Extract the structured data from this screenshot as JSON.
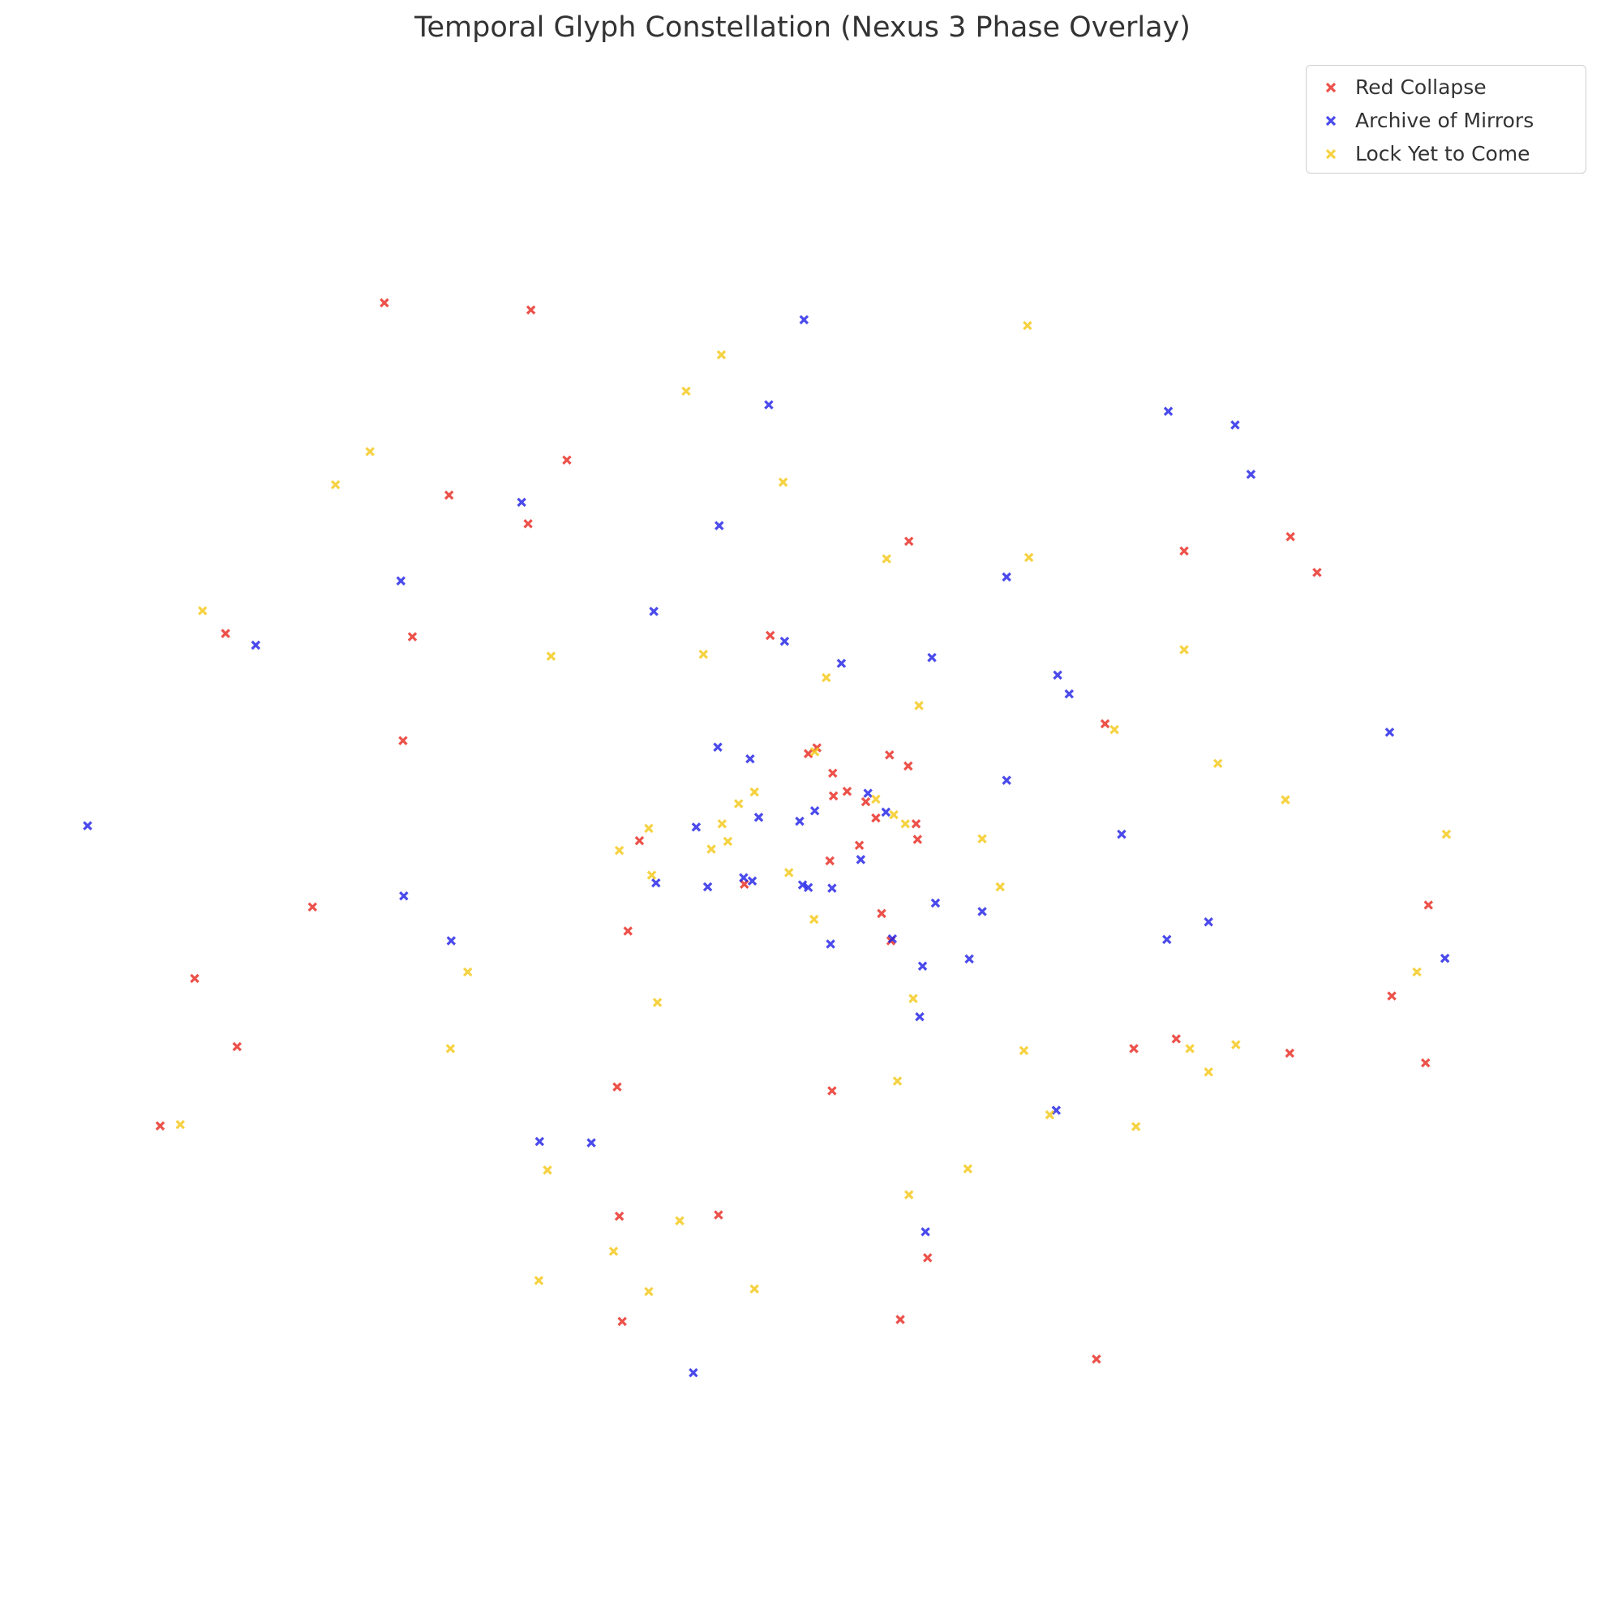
{
  "chart_data": {
    "type": "scatter",
    "title": "Temporal Glyph Constellation (Nexus 3 Phase Overlay)",
    "xlabel": "",
    "ylabel": "",
    "xlim": [
      -10,
      10
    ],
    "ylim": [
      -10,
      10
    ],
    "grid": false,
    "axes_visible": false,
    "marker": "x",
    "legend_position": "top-right",
    "series": [
      {
        "name": "Red Collapse",
        "color": "#e8261e",
        "points": [
          [
            -5.87,
            8.06
          ],
          [
            -3.83,
            7.95
          ],
          [
            -3.33,
            5.64
          ],
          [
            -4.97,
            5.1
          ],
          [
            -3.87,
            4.66
          ],
          [
            -5.48,
            2.92
          ],
          [
            -8.08,
            2.97
          ],
          [
            -5.61,
            1.32
          ],
          [
            -6.87,
            -1.24
          ],
          [
            -8.51,
            -2.34
          ],
          [
            -7.92,
            -3.39
          ],
          [
            -8.99,
            -4.61
          ],
          [
            -0.5,
            2.94
          ],
          [
            0.15,
            1.21
          ],
          [
            0.03,
            1.12
          ],
          [
            0.37,
            0.82
          ],
          [
            0.38,
            0.47
          ],
          [
            0.57,
            0.54
          ],
          [
            0.83,
            0.38
          ],
          [
            0.97,
            0.13
          ],
          [
            1.16,
            1.1
          ],
          [
            1.42,
            0.93
          ],
          [
            1.53,
            0.04
          ],
          [
            1.55,
            -0.2
          ],
          [
            -2.32,
            -0.22
          ],
          [
            -2.48,
            -1.61
          ],
          [
            -0.86,
            -0.89
          ],
          [
            0.33,
            -0.53
          ],
          [
            0.74,
            -0.29
          ],
          [
            1.05,
            -1.34
          ],
          [
            1.18,
            -1.76
          ],
          [
            1.43,
            4.39
          ],
          [
            -2.63,
            -4.01
          ],
          [
            0.36,
            -4.07
          ],
          [
            -1.22,
            -5.98
          ],
          [
            -2.6,
            -6.0
          ],
          [
            1.69,
            -6.64
          ],
          [
            -2.56,
            -7.62
          ],
          [
            1.31,
            -7.59
          ],
          [
            4.04,
            -8.2
          ],
          [
            4.16,
            1.58
          ],
          [
            5.26,
            4.24
          ],
          [
            6.74,
            4.46
          ],
          [
            7.11,
            3.91
          ],
          [
            8.66,
            -1.21
          ],
          [
            8.15,
            -2.61
          ],
          [
            4.56,
            -3.42
          ],
          [
            5.15,
            -3.27
          ],
          [
            6.73,
            -3.49
          ],
          [
            8.62,
            -3.64
          ]
        ]
      },
      {
        "name": "Archive of Mirrors",
        "color": "#1e1ee8",
        "points": [
          [
            -0.03,
            7.8
          ],
          [
            -0.52,
            6.49
          ],
          [
            -1.21,
            4.63
          ],
          [
            -3.96,
            4.99
          ],
          [
            -5.64,
            3.78
          ],
          [
            -7.66,
            2.79
          ],
          [
            -10.0,
            0.01
          ],
          [
            -2.12,
            3.31
          ],
          [
            -0.3,
            2.85
          ],
          [
            0.49,
            2.51
          ],
          [
            1.75,
            2.6
          ],
          [
            3.5,
            2.33
          ],
          [
            3.66,
            2.04
          ],
          [
            2.79,
            3.84
          ],
          [
            5.04,
            6.39
          ],
          [
            5.97,
            6.18
          ],
          [
            6.19,
            5.42
          ],
          [
            8.12,
            1.45
          ],
          [
            8.89,
            -2.03
          ],
          [
            4.39,
            -0.12
          ],
          [
            5.02,
            -1.74
          ],
          [
            5.6,
            -1.47
          ],
          [
            2.79,
            0.71
          ],
          [
            -1.53,
            -0.01
          ],
          [
            -1.23,
            1.22
          ],
          [
            -0.78,
            1.04
          ],
          [
            -0.66,
            0.14
          ],
          [
            -0.09,
            0.08
          ],
          [
            0.12,
            0.24
          ],
          [
            0.86,
            0.51
          ],
          [
            1.11,
            0.22
          ],
          [
            0.76,
            -0.51
          ],
          [
            -0.75,
            -0.84
          ],
          [
            -1.37,
            -0.93
          ],
          [
            -2.09,
            -0.87
          ],
          [
            -0.87,
            -0.79
          ],
          [
            -0.05,
            -0.9
          ],
          [
            0.03,
            -0.94
          ],
          [
            0.36,
            -0.95
          ],
          [
            1.8,
            -1.18
          ],
          [
            2.45,
            -1.31
          ],
          [
            1.2,
            -1.73
          ],
          [
            2.27,
            -2.04
          ],
          [
            1.62,
            -2.15
          ],
          [
            1.58,
            -2.93
          ],
          [
            0.34,
            -1.81
          ],
          [
            -4.94,
            -1.76
          ],
          [
            -5.6,
            -1.07
          ],
          [
            -2.99,
            -4.87
          ],
          [
            -3.71,
            -4.85
          ],
          [
            3.48,
            -4.37
          ],
          [
            1.66,
            -6.24
          ],
          [
            -1.57,
            -8.41
          ]
        ]
      },
      {
        "name": "Lock Yet to Come",
        "color": "#f5c814",
        "points": [
          [
            -1.18,
            7.26
          ],
          [
            -1.67,
            6.7
          ],
          [
            -0.32,
            5.3
          ],
          [
            -6.07,
            5.77
          ],
          [
            -6.55,
            5.26
          ],
          [
            -8.4,
            3.32
          ],
          [
            -3.55,
            2.62
          ],
          [
            -1.43,
            2.65
          ],
          [
            0.28,
            2.29
          ],
          [
            1.57,
            1.86
          ],
          [
            1.12,
            4.12
          ],
          [
            3.08,
            7.71
          ],
          [
            3.1,
            4.14
          ],
          [
            4.29,
            1.49
          ],
          [
            5.26,
            2.72
          ],
          [
            5.73,
            0.97
          ],
          [
            6.67,
            0.41
          ],
          [
            8.91,
            -0.12
          ],
          [
            2.45,
            -0.19
          ],
          [
            2.7,
            -0.93
          ],
          [
            0.12,
            1.15
          ],
          [
            -0.72,
            0.53
          ],
          [
            -0.94,
            0.35
          ],
          [
            -1.17,
            0.04
          ],
          [
            -1.09,
            -0.23
          ],
          [
            0.97,
            0.42
          ],
          [
            1.38,
            0.04
          ],
          [
            1.22,
            0.18
          ],
          [
            -2.19,
            -0.03
          ],
          [
            -2.6,
            -0.37
          ],
          [
            -2.15,
            -0.75
          ],
          [
            -0.24,
            -0.71
          ],
          [
            -1.32,
            -0.35
          ],
          [
            0.11,
            -1.43
          ],
          [
            -4.71,
            -2.24
          ],
          [
            -4.95,
            -3.42
          ],
          [
            -2.07,
            -2.71
          ],
          [
            1.49,
            -2.65
          ],
          [
            -8.71,
            -4.59
          ],
          [
            -3.6,
            -5.29
          ],
          [
            3.03,
            -3.45
          ],
          [
            5.34,
            -3.42
          ],
          [
            5.98,
            -3.36
          ],
          [
            5.6,
            -3.78
          ],
          [
            4.59,
            -4.62
          ],
          [
            3.39,
            -4.44
          ],
          [
            1.27,
            -3.92
          ],
          [
            1.43,
            -5.67
          ],
          [
            2.25,
            -5.27
          ],
          [
            -1.76,
            -6.07
          ],
          [
            -2.68,
            -6.54
          ],
          [
            -3.72,
            -6.99
          ],
          [
            -2.19,
            -7.16
          ],
          [
            -0.72,
            -7.12
          ],
          [
            8.5,
            -2.24
          ]
        ]
      }
    ]
  },
  "legend": {
    "items": [
      {
        "label": "Red Collapse",
        "color": "#e8261e"
      },
      {
        "label": "Archive of Mirrors",
        "color": "#1e1ee8"
      },
      {
        "label": "Lock Yet to Come",
        "color": "#f5c814"
      }
    ]
  }
}
